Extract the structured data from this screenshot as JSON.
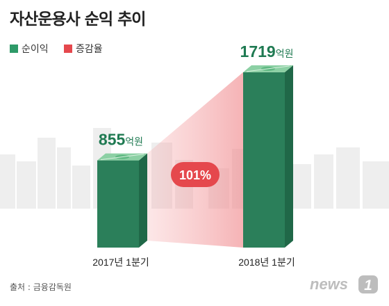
{
  "title": "자산운용사 순익 추이",
  "legend": [
    {
      "label": "순이익",
      "color": "#2e9a68"
    },
    {
      "label": "증감율",
      "color": "#e5484d"
    }
  ],
  "chart_data": {
    "type": "bar",
    "title": "자산운용사 순익 추이",
    "categories": [
      "2017년 1분기",
      "2018년 1분기"
    ],
    "series": [
      {
        "name": "순이익",
        "values": [
          855,
          1719
        ]
      }
    ],
    "data_labels": [
      {
        "number": "855",
        "unit": "억원"
      },
      {
        "number": "1719",
        "unit": "억원"
      }
    ],
    "change": {
      "name": "증감율",
      "label": "101%",
      "value": 101
    },
    "ylim": [
      0,
      1800
    ],
    "grid": false
  },
  "source": "출처 : 금융감독원",
  "brand": {
    "name": "news1",
    "text": "news",
    "mark": "1"
  },
  "colors": {
    "bar_front": "#2b7f5a",
    "bar_side": "#206848",
    "bar_top": "#8cd0a4",
    "value_text": "#1f7a52",
    "badge": "#e5484d",
    "skyline": "#eeeeee"
  }
}
